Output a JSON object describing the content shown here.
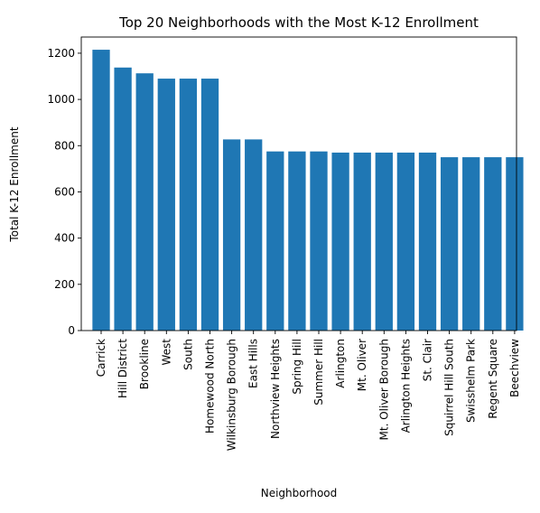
{
  "chart_data": {
    "type": "bar",
    "title": "Top 20 Neighborhoods with the Most K-12 Enrollment",
    "xlabel": "Neighborhood",
    "ylabel": "Total K-12 Enrollment",
    "ylim": [
      0,
      1270
    ],
    "yticks": [
      0,
      200,
      400,
      600,
      800,
      1000,
      1200
    ],
    "grid": false,
    "bar_color": "#1f77b4",
    "categories": [
      "Carrick",
      "Hill District",
      "Brookline",
      "West",
      "South",
      "Homewood North",
      "Wilkinsburg Borough",
      "East Hills",
      "Northview Heights",
      "Spring Hill",
      "Summer Hill",
      "Arlington",
      "Mt. Oliver",
      "Mt. Oliver Borough",
      "Arlington Heights",
      "St. Clair",
      "Squirrel Hill South",
      "Swisshelm Park",
      "Regent Square",
      "Beechview"
    ],
    "values": [
      1215,
      1138,
      1113,
      1090,
      1090,
      1090,
      827,
      827,
      775,
      775,
      775,
      770,
      770,
      770,
      770,
      770,
      750,
      750,
      750,
      750
    ]
  }
}
